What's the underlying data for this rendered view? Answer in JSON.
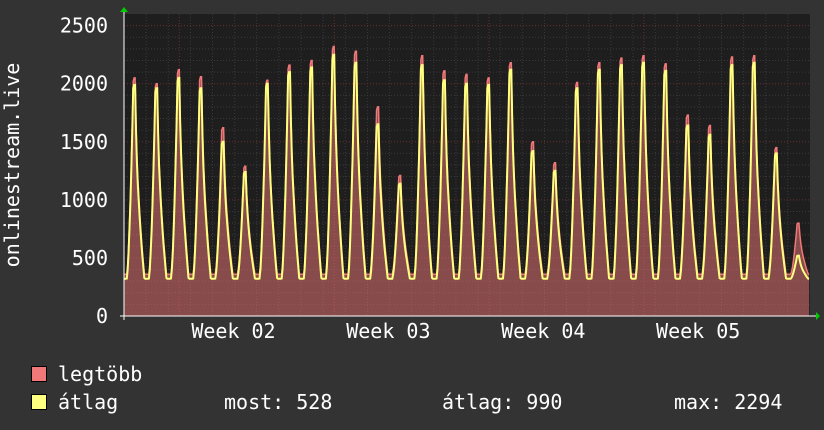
{
  "chart_data": {
    "type": "line",
    "ylabel": "onlinestream.live",
    "ylim": [
      0,
      2600
    ],
    "yticks": [
      0,
      500,
      1000,
      1500,
      2000,
      2500
    ],
    "yticklabels": [
      "0",
      "500",
      "1000",
      "1500",
      "2000",
      "2500"
    ],
    "xlabels": [
      "Week 02",
      "Week 03",
      "Week 04",
      "Week 05"
    ],
    "x_label_days": [
      6,
      13,
      20,
      27
    ],
    "days": 31,
    "grid": true,
    "colors": {
      "background": "#333333",
      "plot": "#1e1e1e",
      "max": "#f07878",
      "avg": "#ffff80"
    },
    "series": [
      {
        "name": "legtöbb",
        "peaks": [
          2050,
          2000,
          2120,
          2060,
          1620,
          1290,
          2030,
          2160,
          2200,
          2320,
          2280,
          1800,
          1210,
          2240,
          2110,
          2080,
          2050,
          2180,
          1500,
          1320,
          2010,
          2180,
          2220,
          2240,
          2170,
          1730,
          1640,
          2230,
          2240,
          1450,
          800
        ]
      },
      {
        "name": "átlag",
        "peaks": [
          1990,
          1960,
          2050,
          1960,
          1500,
          1240,
          2000,
          2100,
          2140,
          2250,
          2180,
          1650,
          1140,
          2160,
          2030,
          2000,
          1990,
          2120,
          1420,
          1250,
          1960,
          2120,
          2160,
          2180,
          2110,
          1640,
          1560,
          2160,
          2180,
          1400,
          520
        ]
      }
    ]
  },
  "legend": {
    "max_label": "legtöbb",
    "avg_label": "átlag"
  },
  "stats": {
    "now": "most: 528",
    "avg": "átlag: 990",
    "max": "max: 2294"
  }
}
